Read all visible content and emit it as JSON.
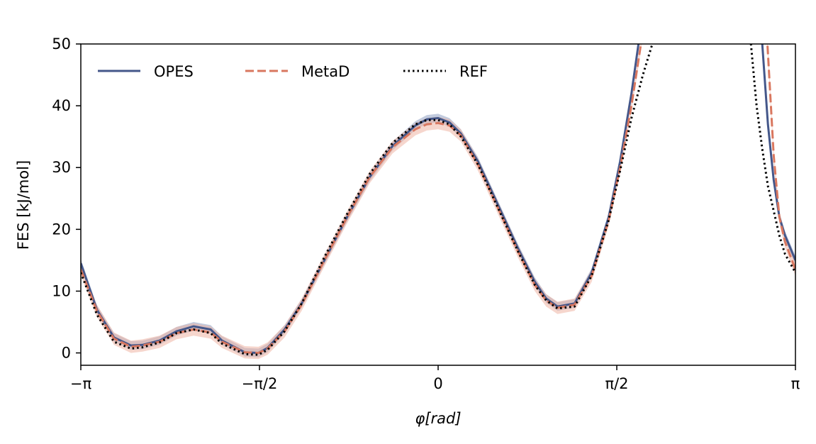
{
  "chart_data": {
    "type": "line",
    "xlabel": "φ[rad]",
    "ylabel": "FES [kJ/mol]",
    "xlim": [
      -3.1416,
      3.1416
    ],
    "ylim": [
      -2,
      50
    ],
    "grid": false,
    "legend_position": "top-left",
    "x_ticks": [
      {
        "value": -3.1416,
        "label": "−π"
      },
      {
        "value": -1.5708,
        "label": "−π/2"
      },
      {
        "value": 0,
        "label": "0"
      },
      {
        "value": 1.5708,
        "label": "π/2"
      },
      {
        "value": 3.1416,
        "label": "π"
      }
    ],
    "y_ticks": [
      {
        "value": 0,
        "label": "0"
      },
      {
        "value": 10,
        "label": "10"
      },
      {
        "value": 20,
        "label": "20"
      },
      {
        "value": 30,
        "label": "30"
      },
      {
        "value": 40,
        "label": "40"
      },
      {
        "value": 50,
        "label": "50"
      }
    ],
    "series": [
      {
        "name": "OPES",
        "color": "#44578a",
        "band_color": "#8fa0c3",
        "dash": "solid",
        "x": [
          -3.1416,
          -3.0,
          -2.85,
          -2.7,
          -2.6,
          -2.45,
          -2.3,
          -2.15,
          -2.0,
          -1.9,
          -1.7,
          -1.58,
          -1.5,
          -1.35,
          -1.2,
          -1.0,
          -0.8,
          -0.6,
          -0.4,
          -0.2,
          -0.1,
          0.0,
          0.1,
          0.2,
          0.35,
          0.5,
          0.7,
          0.85,
          0.95,
          1.05,
          1.2,
          1.35,
          1.5,
          1.6,
          1.7,
          1.8,
          1.9,
          1.95,
          2.0,
          2.05,
          2.8,
          2.85,
          2.9,
          2.95,
          3.0,
          3.05,
          3.1416
        ],
        "y": [
          14.5,
          7.0,
          2.5,
          1.2,
          1.3,
          2.0,
          3.5,
          4.3,
          3.8,
          2.0,
          0.1,
          0.0,
          0.8,
          3.8,
          8.0,
          15.0,
          22.0,
          28.5,
          33.5,
          36.8,
          37.8,
          38.0,
          37.3,
          35.5,
          31.0,
          25.0,
          17.0,
          11.5,
          8.8,
          7.5,
          8.0,
          13.0,
          22.0,
          31.0,
          42.0,
          55.0,
          55.0,
          55.0,
          55.0,
          55.0,
          55.0,
          50.0,
          37.0,
          28.0,
          22.0,
          19.0,
          15.0
        ],
        "band": 0.7
      },
      {
        "name": "MetaD",
        "color": "#d9775f",
        "band_color": "#eeb4a4",
        "dash": "dashed",
        "x": [
          -3.1416,
          -3.0,
          -2.85,
          -2.7,
          -2.6,
          -2.45,
          -2.3,
          -2.15,
          -2.0,
          -1.9,
          -1.7,
          -1.58,
          -1.5,
          -1.35,
          -1.2,
          -1.0,
          -0.8,
          -0.6,
          -0.4,
          -0.2,
          -0.1,
          0.0,
          0.1,
          0.2,
          0.35,
          0.5,
          0.7,
          0.85,
          0.95,
          1.05,
          1.2,
          1.35,
          1.5,
          1.6,
          1.7,
          1.8,
          1.85,
          1.9,
          2.0,
          2.05,
          2.85,
          2.88,
          2.92,
          2.95,
          3.0,
          3.05,
          3.1416
        ],
        "y": [
          13.5,
          6.8,
          2.3,
          1.0,
          1.2,
          1.8,
          3.2,
          3.8,
          3.3,
          1.8,
          0.1,
          0.0,
          0.7,
          3.5,
          7.8,
          15.0,
          22.0,
          28.5,
          33.3,
          36.2,
          37.0,
          37.2,
          36.8,
          35.2,
          30.5,
          24.5,
          16.5,
          11.0,
          8.5,
          7.3,
          7.8,
          12.5,
          21.5,
          30.0,
          40.0,
          52.0,
          55.0,
          55.0,
          55.0,
          55.0,
          55.0,
          55.0,
          42.0,
          32.0,
          22.0,
          18.0,
          13.5
        ],
        "band": 1.0
      },
      {
        "name": "REF",
        "color": "#000000",
        "dash": "dotted",
        "x": [
          -3.1416,
          -3.0,
          -2.85,
          -2.7,
          -2.6,
          -2.45,
          -2.3,
          -2.15,
          -2.0,
          -1.9,
          -1.7,
          -1.58,
          -1.5,
          -1.35,
          -1.2,
          -1.0,
          -0.8,
          -0.6,
          -0.4,
          -0.2,
          -0.1,
          0.0,
          0.1,
          0.2,
          0.35,
          0.5,
          0.7,
          0.85,
          0.95,
          1.05,
          1.2,
          1.35,
          1.5,
          1.6,
          1.7,
          1.8,
          1.9,
          1.95,
          2.0,
          2.7,
          2.75,
          2.8,
          2.85,
          2.9,
          2.95,
          3.0,
          3.05,
          3.1416
        ],
        "y": [
          13.0,
          6.2,
          1.8,
          0.7,
          0.9,
          1.7,
          3.2,
          3.8,
          3.2,
          1.5,
          -0.2,
          -0.3,
          0.5,
          3.5,
          8.0,
          15.5,
          22.5,
          29.0,
          34.0,
          37.0,
          37.7,
          37.7,
          37.0,
          35.0,
          30.5,
          24.5,
          16.5,
          11.0,
          8.5,
          7.2,
          7.5,
          12.5,
          21.5,
          29.5,
          38.0,
          45.0,
          51.0,
          55.0,
          55.0,
          55.0,
          50.0,
          40.0,
          33.0,
          27.0,
          23.0,
          19.0,
          16.0,
          13.0
        ]
      }
    ]
  }
}
